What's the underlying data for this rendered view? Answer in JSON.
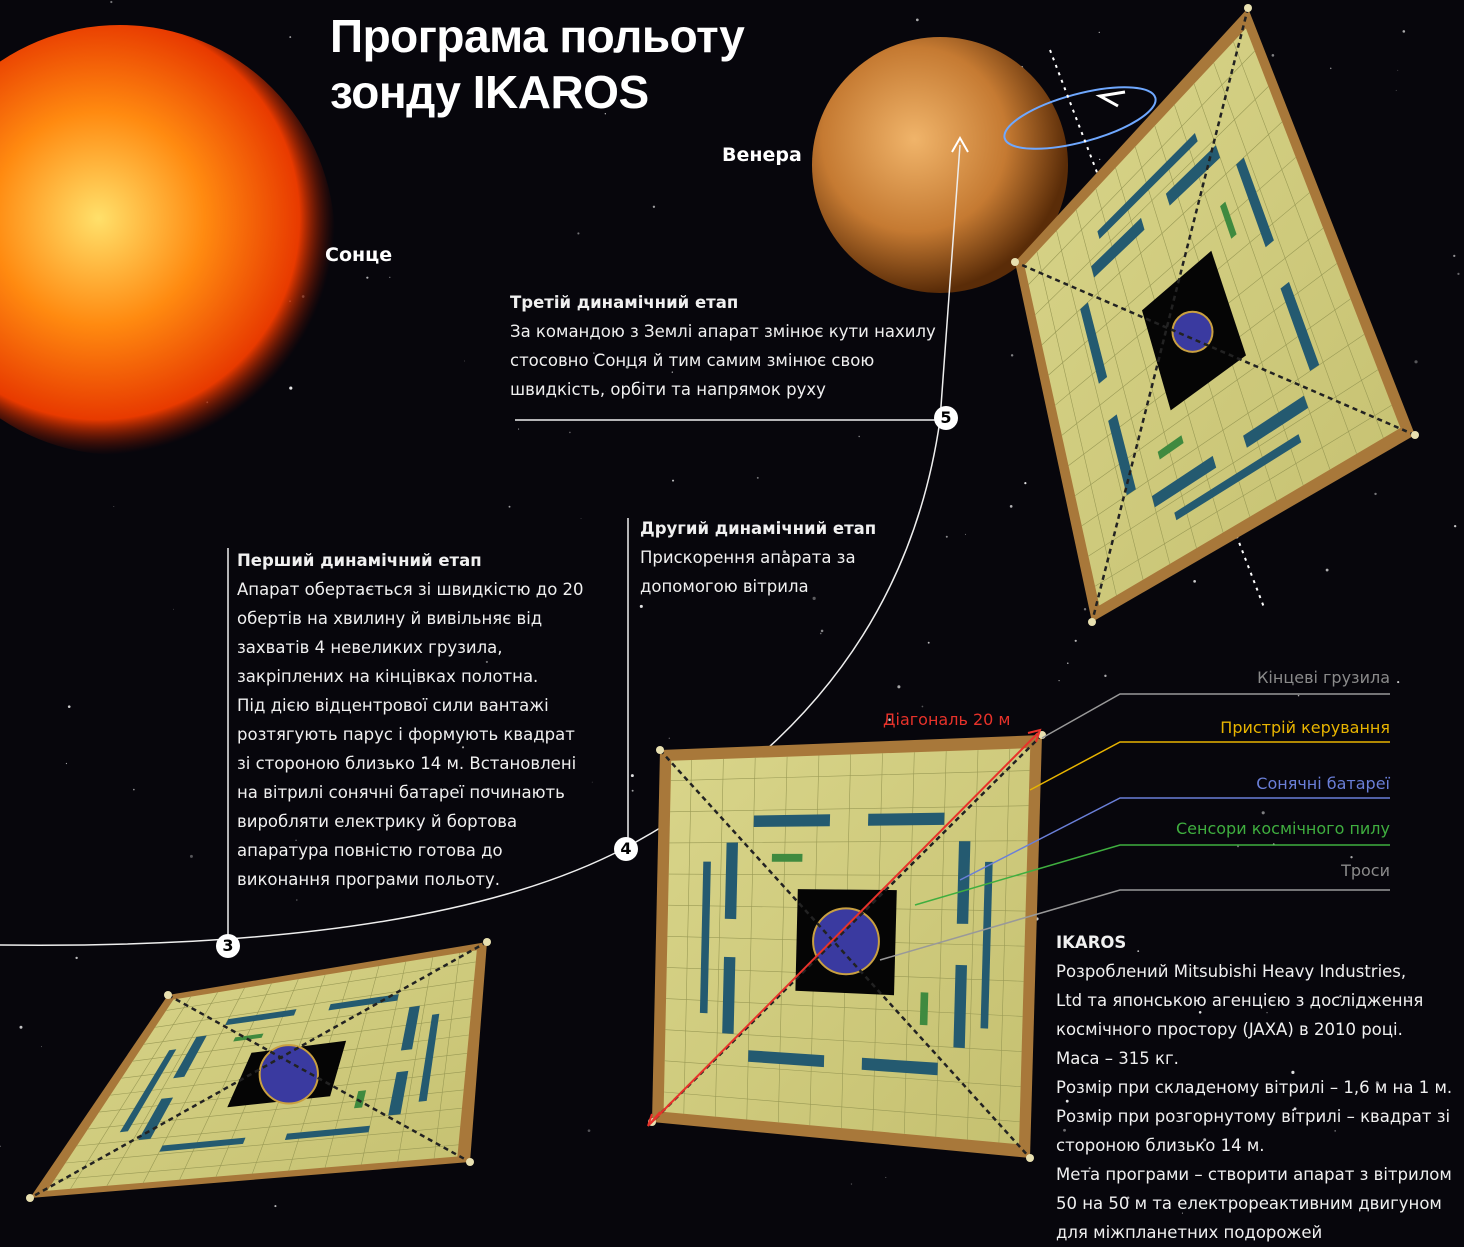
{
  "header": {
    "title_lines": [
      "Програма польоту",
      "зонду IKAROS"
    ]
  },
  "bodies": {
    "sun": "Сонце",
    "venus": "Венера"
  },
  "stages": [
    {
      "number": "3",
      "heading": "Перший динамічний етап",
      "lines": [
        "Апарат обертається зі швидкістю до 20",
        "обертів на хвилину й вивільняє від",
        "захватів 4 невеликих грузила,",
        "закріплених на кінцівках полотна.",
        "Під дією відцентрової сили вантажі",
        "розтягують парус і формують квадрат",
        "зі стороною близько 14 м. Встановлені",
        "на вітрилі сонячні батареї починають",
        "виробляти електрику й бортова",
        "апаратура повністю готова до",
        "виконання програми польоту."
      ]
    },
    {
      "number": "4",
      "heading": "Другий динамічний етап",
      "lines": [
        "Прискорення апарата за",
        "допомогою вітрила"
      ]
    },
    {
      "number": "5",
      "heading": "Третій динамічний етап",
      "lines": [
        "За командою з Землі апарат змінює кути нахилу",
        "стосовно Сонця й тим самим змінює свою",
        "швидкість, орбіти та напрямок руху"
      ]
    }
  ],
  "diagonal_label": "Діагональ 20 м",
  "parts": [
    "Кінцеві грузила",
    "Пристрій керування",
    "Сонячні батареї",
    "Сенсори космічного пилу",
    "Троси"
  ],
  "info": {
    "heading": "IKAROS",
    "lines": [
      "Розроблений Mitsubishi Heavy Industries,",
      "Ltd та японською агенцією з дослідження",
      "космічного простору (JAXA) в 2010 році.",
      "Маса – 315 кг.",
      "Розмір при складеному вітрилі – 1,6 м на 1 м.",
      "Розмір при розгорнутому вітрилі – квадрат зі",
      "стороною близько 14 м.",
      "Мета програми – створити апарат з вітрилом",
      "50 на 50 м та електрореактивним двигуном",
      "для міжпланетних подорожей"
    ]
  }
}
